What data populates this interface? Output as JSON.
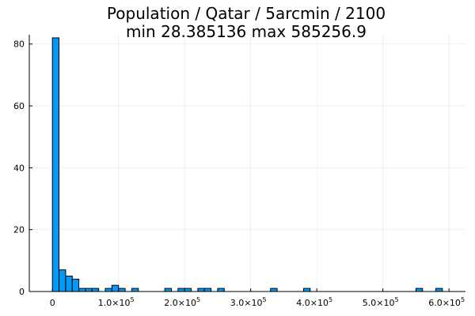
{
  "chart_data": {
    "type": "bar",
    "title": "Population / Qatar / 5arcmin / 2100",
    "subtitle": "min 28.385136  max 585256.9",
    "xlabel": "",
    "ylabel": "",
    "bin_width": 10000,
    "xlim": [
      -35000,
      625000
    ],
    "ylim": [
      0,
      83
    ],
    "grid": true,
    "legend": "none",
    "bar_color": "#009af9",
    "x_ticks": [
      {
        "value": 0,
        "mantissa": "0",
        "exp": ""
      },
      {
        "value": 100000,
        "mantissa": "1.0×10",
        "exp": "5"
      },
      {
        "value": 200000,
        "mantissa": "2.0×10",
        "exp": "5"
      },
      {
        "value": 300000,
        "mantissa": "3.0×10",
        "exp": "5"
      },
      {
        "value": 400000,
        "mantissa": "4.0×10",
        "exp": "5"
      },
      {
        "value": 500000,
        "mantissa": "5.0×10",
        "exp": "5"
      },
      {
        "value": 600000,
        "mantissa": "6.0×10",
        "exp": "5"
      }
    ],
    "y_ticks": [
      {
        "value": 0,
        "label": "0"
      },
      {
        "value": 20,
        "label": "20"
      },
      {
        "value": 40,
        "label": "40"
      },
      {
        "value": 60,
        "label": "60"
      },
      {
        "value": 80,
        "label": "80"
      }
    ],
    "bins": [
      {
        "start": 0,
        "count": 82
      },
      {
        "start": 10000,
        "count": 7
      },
      {
        "start": 20000,
        "count": 5
      },
      {
        "start": 30000,
        "count": 4
      },
      {
        "start": 40000,
        "count": 1
      },
      {
        "start": 50000,
        "count": 1
      },
      {
        "start": 60000,
        "count": 1
      },
      {
        "start": 80000,
        "count": 1
      },
      {
        "start": 90000,
        "count": 2
      },
      {
        "start": 100000,
        "count": 1
      },
      {
        "start": 120000,
        "count": 1
      },
      {
        "start": 170000,
        "count": 1
      },
      {
        "start": 190000,
        "count": 1
      },
      {
        "start": 200000,
        "count": 1
      },
      {
        "start": 220000,
        "count": 1
      },
      {
        "start": 230000,
        "count": 1
      },
      {
        "start": 250000,
        "count": 1
      },
      {
        "start": 330000,
        "count": 1
      },
      {
        "start": 380000,
        "count": 1
      },
      {
        "start": 550000,
        "count": 1
      },
      {
        "start": 580000,
        "count": 1
      }
    ]
  }
}
